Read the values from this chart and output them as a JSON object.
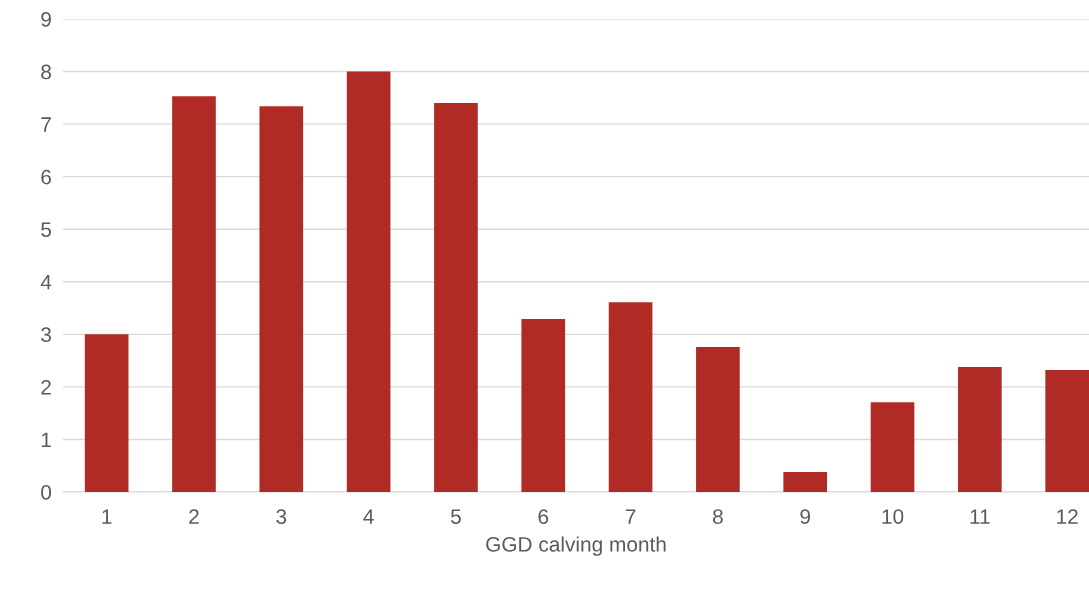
{
  "chart_data": {
    "type": "bar",
    "xlabel": "GGD calving month",
    "categories": [
      "1",
      "2",
      "3",
      "4",
      "5",
      "6",
      "7",
      "8",
      "9",
      "10",
      "11",
      "12"
    ],
    "values": [
      3.0,
      7.53,
      7.34,
      8.0,
      7.4,
      3.29,
      3.61,
      2.76,
      0.38,
      1.71,
      2.38,
      2.32
    ],
    "color": "#b02a26",
    "ylim": [
      0,
      9
    ],
    "yticks": [
      0,
      1,
      2,
      3,
      4,
      5,
      6,
      7,
      8,
      9
    ],
    "grid": "y",
    "legend": false
  }
}
